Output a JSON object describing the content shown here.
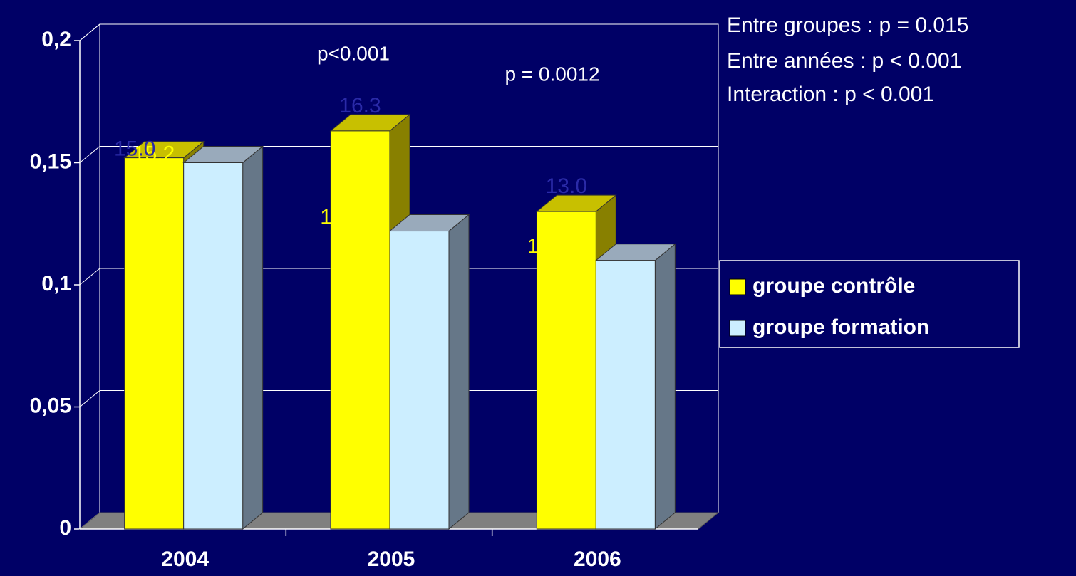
{
  "chart_data": {
    "type": "bar3d",
    "categories": [
      "2004",
      "2005",
      "2006"
    ],
    "series": [
      {
        "name": "groupe contrôle",
        "color": "#ffff00",
        "values": [
          0.152,
          0.163,
          0.13
        ],
        "value_labels": [
          "15.2",
          "16.3",
          "13.0"
        ]
      },
      {
        "name": "groupe formation",
        "color": "#cceeff",
        "values": [
          0.15,
          0.122,
          0.11
        ],
        "value_labels": [
          "15.0",
          "12.2",
          "11.0"
        ]
      }
    ],
    "ylim": [
      0,
      0.2
    ],
    "yticks": [
      0,
      {
        "value": 0.05,
        "label": "0,05"
      },
      {
        "value": 0.1,
        "label": "0,1"
      },
      {
        "value": 0.15,
        "label": "0,15"
      },
      {
        "value": 0.2,
        "label": "0,2"
      }
    ],
    "grid": true,
    "annotations": [
      "p<0.001",
      "p = 0.0012"
    ],
    "stats": [
      "Entre groupes : p = 0.015",
      "Entre années : p < 0.001",
      "Interaction : p < 0.001"
    ],
    "legend": "right"
  }
}
